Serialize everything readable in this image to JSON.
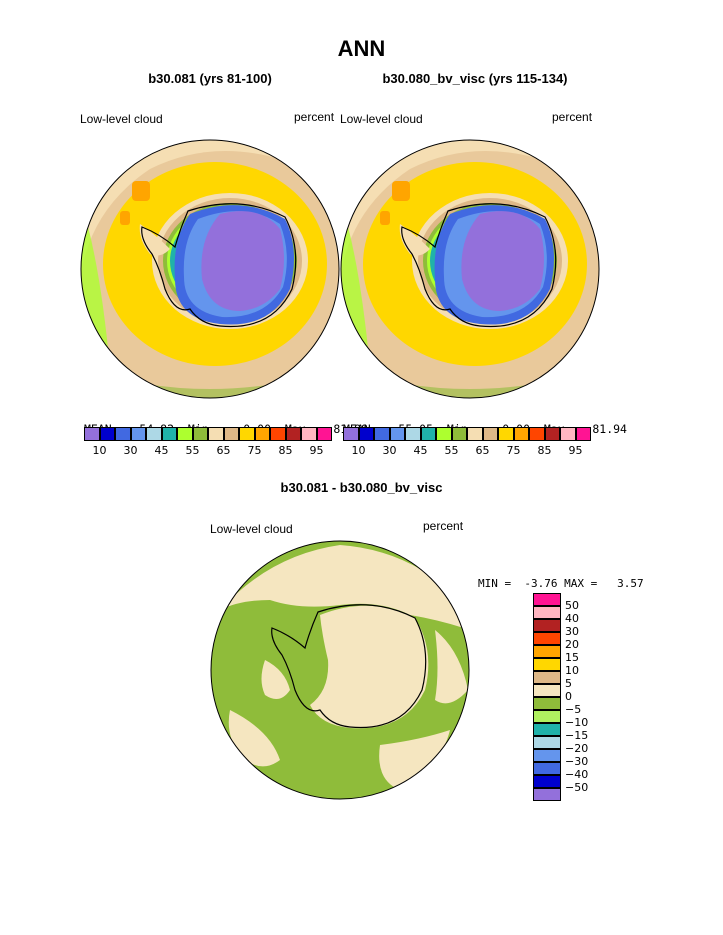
{
  "figure": {
    "title": "ANN",
    "variable_label": "Low-level cloud",
    "units": "percent"
  },
  "panels": [
    {
      "id": "top-left",
      "case": "b30.081 (yrs 81-100)",
      "stats": {
        "mean_label": "MEAN=",
        "mean": "54.82",
        "min_label": "Min=",
        "min": "0.00",
        "max_label": "Max=",
        "max": "81.98"
      }
    },
    {
      "id": "top-right",
      "case": "b30.080_bv_visc (yrs 115-134)",
      "stats": {
        "mean_label": "MEAN=",
        "mean": "55.05",
        "min_label": "Min=",
        "min": "0.00",
        "max_label": "Max=",
        "max": "81.94"
      }
    }
  ],
  "difference_panel": {
    "title": "b30.081 - b30.080_bv_visc",
    "min_label": "MIN =",
    "min": "-3.76",
    "max_label": "MAX =",
    "max": "3.57"
  },
  "colorbar_top": {
    "colors": [
      "#9370db",
      "#0000cd",
      "#4169e1",
      "#6495ed",
      "#add8e6",
      "#20b2aa",
      "#adff2f",
      "#8fbc3a",
      "#f5deb3",
      "#deb887",
      "#ffd700",
      "#ffa500",
      "#ff4500",
      "#b22222",
      "#ffb6c1",
      "#ff1493"
    ],
    "tick_labels": [
      "10",
      "30",
      "45",
      "55",
      "65",
      "75",
      "85",
      "95"
    ]
  },
  "colorbar_diff": {
    "colors": [
      "#9370db",
      "#0000cd",
      "#4169e1",
      "#6495ed",
      "#add8e6",
      "#20b2aa",
      "#b0f060",
      "#8fbc3a",
      "#f5e6c0",
      "#deb887",
      "#ffd700",
      "#ffa500",
      "#ff4500",
      "#b22222",
      "#ffb6c1",
      "#ff1493"
    ],
    "tick_labels": [
      "50",
      "40",
      "30",
      "20",
      "15",
      "10",
      "5",
      "0",
      "−5",
      "−10",
      "−15",
      "−20",
      "−30",
      "−40",
      "−50"
    ]
  },
  "map_colors": {
    "ocean_high": "#ffd700",
    "ocean_mid": "#f5deb3",
    "ocean_edge": "#deb887",
    "green_ring": "#8fbc3a",
    "light_green": "#adff2f",
    "orange_patch": "#ffa500",
    "ice_low": "#9370db",
    "ice_edge": "#4169e1",
    "ice_blue": "#6495ed",
    "diff_green": "#8fbc3a",
    "diff_cream": "#f5e6c0"
  }
}
